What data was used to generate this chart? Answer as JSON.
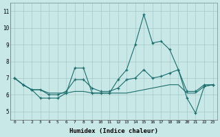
{
  "xlabel": "Humidex (Indice chaleur)",
  "x_ticks": [
    0,
    1,
    2,
    3,
    4,
    5,
    6,
    7,
    8,
    9,
    10,
    11,
    12,
    13,
    14,
    15,
    16,
    17,
    18,
    19,
    20,
    21,
    22,
    23
  ],
  "xlim": [
    -0.5,
    23.5
  ],
  "ylim": [
    4.5,
    11.5
  ],
  "y_ticks": [
    5,
    6,
    7,
    8,
    9,
    10,
    11
  ],
  "bg_color": "#c8e8e8",
  "grid_color": "#a8c8c8",
  "line_color": "#1a6b6b",
  "line1_x": [
    0,
    1,
    2,
    3,
    4,
    5,
    6,
    7,
    8,
    9,
    10,
    11,
    12,
    13,
    14,
    15,
    16,
    17,
    18,
    19,
    20,
    21,
    22,
    23
  ],
  "line1_y": [
    7.0,
    6.6,
    6.3,
    5.8,
    5.8,
    5.8,
    6.1,
    7.6,
    7.6,
    6.1,
    6.1,
    6.1,
    6.9,
    7.5,
    9.0,
    10.8,
    9.1,
    9.2,
    8.7,
    7.5,
    5.8,
    4.9,
    6.5,
    6.6
  ],
  "line2_x": [
    0,
    1,
    2,
    3,
    4,
    5,
    6,
    7,
    8,
    9,
    10,
    11,
    12,
    13,
    14,
    15,
    16,
    17,
    18,
    19,
    20,
    21,
    22,
    23
  ],
  "line2_y": [
    7.0,
    6.6,
    6.3,
    6.3,
    6.0,
    6.0,
    6.2,
    6.9,
    6.9,
    6.4,
    6.2,
    6.2,
    6.4,
    6.9,
    7.0,
    7.5,
    7.0,
    7.1,
    7.3,
    7.5,
    6.2,
    6.2,
    6.6,
    6.6
  ],
  "line3_x": [
    0,
    1,
    2,
    3,
    4,
    5,
    6,
    7,
    8,
    9,
    10,
    11,
    12,
    13,
    14,
    15,
    16,
    17,
    18,
    19,
    20,
    21,
    22,
    23
  ],
  "line3_y": [
    7.0,
    6.6,
    6.3,
    6.3,
    6.1,
    6.1,
    6.1,
    6.2,
    6.2,
    6.1,
    6.1,
    6.1,
    6.1,
    6.1,
    6.2,
    6.3,
    6.4,
    6.5,
    6.6,
    6.6,
    6.1,
    6.1,
    6.5,
    6.6
  ]
}
